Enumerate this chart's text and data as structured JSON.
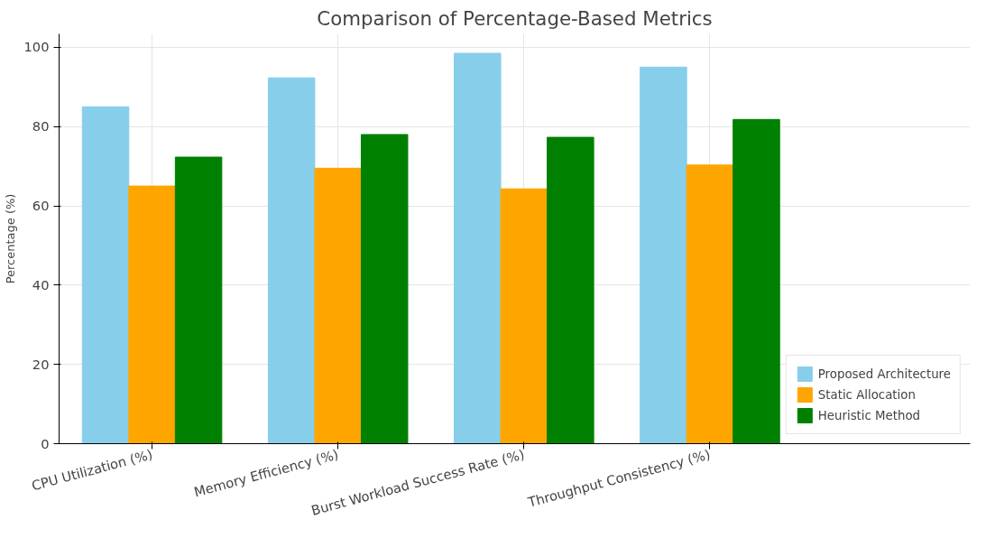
{
  "chart_data": {
    "type": "bar",
    "title": "Comparison of Percentage-Based Metrics",
    "ylabel": "Percentage (%)",
    "categories": [
      "CPU Utilization (%)",
      "Memory Efficiency (%)",
      "Burst Workload Success Rate (%)",
      "Throughput Consistency (%)"
    ],
    "series": [
      {
        "name": "Proposed Architecture",
        "color": "#87ceeb",
        "values": [
          85,
          92.3,
          98.5,
          95
        ]
      },
      {
        "name": "Static Allocation",
        "color": "#ffa500",
        "values": [
          65,
          69.5,
          64.3,
          70.3
        ]
      },
      {
        "name": "Heuristic Method",
        "color": "#008000",
        "values": [
          72.3,
          78,
          77.3,
          81.8
        ]
      }
    ],
    "ylim": [
      0,
      103.4
    ],
    "yticks": [
      0,
      20,
      40,
      60,
      80,
      100
    ],
    "grid": true,
    "legend": "bottom right"
  }
}
